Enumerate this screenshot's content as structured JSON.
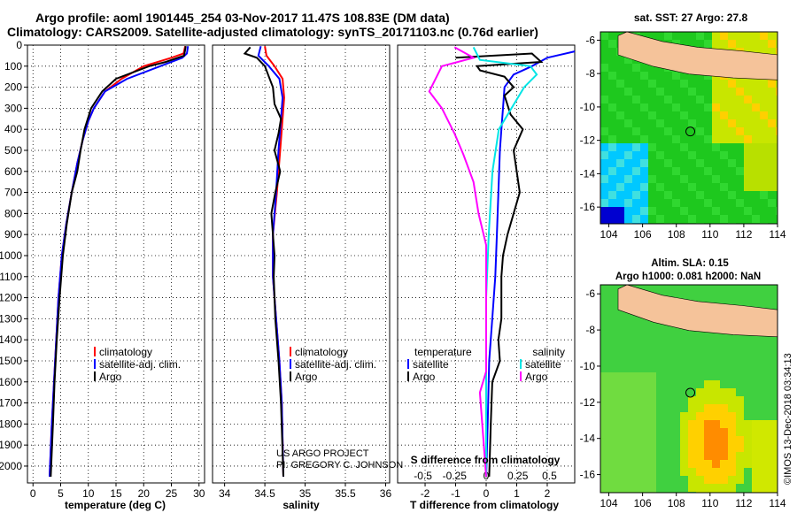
{
  "header": {
    "line1": "Argo profile: aoml 1901445_254 03-Nov-2017 11.47S 108.83E (DM data)",
    "line2": "Climatology: CARS2009. Satellite-adjusted climatology: synTS_20171103.nc (0.76d earlier)"
  },
  "colors": {
    "climatology": "#ff0000",
    "satellite": "#0000ff",
    "argo": "#000000",
    "sat_salinity": "#00e5e5",
    "argo_salinity": "#ff00ff"
  },
  "chart_data": [
    {
      "type": "line",
      "panel": "temperature",
      "xlabel": "temperature (deg C)",
      "xlim": [
        -1,
        31
      ],
      "ylim": [
        2080,
        0
      ],
      "xticks": [
        "0",
        "5",
        "10",
        "15",
        "20",
        "25",
        "30"
      ],
      "yticks": [
        "0",
        "100",
        "200",
        "300",
        "400",
        "500",
        "600",
        "700",
        "800",
        "900",
        "1000",
        "1100",
        "1200",
        "1300",
        "1400",
        "1500",
        "1600",
        "1700",
        "1800",
        "1900",
        "2000"
      ],
      "legend": [
        "climatology",
        "satellite-adj. clim.",
        "Argo"
      ],
      "series": [
        {
          "name": "climatology",
          "color": "#ff0000",
          "points": [
            [
              27.5,
              5
            ],
            [
              27.2,
              40
            ],
            [
              25,
              60
            ],
            [
              20,
              100
            ],
            [
              16,
              160
            ],
            [
              13,
              220
            ],
            [
              11,
              300
            ],
            [
              10,
              360
            ],
            [
              9,
              450
            ],
            [
              8,
              560
            ],
            [
              7,
              700
            ],
            [
              6,
              850
            ],
            [
              5.2,
              1000
            ],
            [
              4.6,
              1200
            ],
            [
              4.2,
              1400
            ],
            [
              3.8,
              1600
            ],
            [
              3.4,
              1800
            ],
            [
              3,
              2050
            ]
          ]
        },
        {
          "name": "satellite-adj. clim.",
          "color": "#0000ff",
          "points": [
            [
              28,
              5
            ],
            [
              27.8,
              40
            ],
            [
              27,
              60
            ],
            [
              23,
              100
            ],
            [
              17,
              160
            ],
            [
              13,
              220
            ],
            [
              11,
              300
            ],
            [
              10,
              360
            ],
            [
              9,
              450
            ],
            [
              8,
              560
            ],
            [
              7,
              700
            ],
            [
              6,
              850
            ],
            [
              5.2,
              1000
            ],
            [
              4.6,
              1200
            ],
            [
              4.2,
              1400
            ],
            [
              3.8,
              1600
            ],
            [
              3.4,
              1800
            ],
            [
              3,
              2050
            ]
          ]
        },
        {
          "name": "Argo",
          "color": "#000000",
          "points": [
            [
              27.6,
              5
            ],
            [
              27.3,
              50
            ],
            [
              24,
              80
            ],
            [
              21,
              100
            ],
            [
              15,
              160
            ],
            [
              12.5,
              220
            ],
            [
              10.5,
              300
            ],
            [
              9.3,
              400
            ],
            [
              8.6,
              500
            ],
            [
              8,
              600
            ],
            [
              7,
              700
            ],
            [
              6.1,
              850
            ],
            [
              5.4,
              1000
            ],
            [
              4.8,
              1200
            ],
            [
              4.3,
              1400
            ],
            [
              3.9,
              1600
            ],
            [
              3.6,
              1800
            ],
            [
              3.2,
              2050
            ]
          ]
        }
      ]
    },
    {
      "type": "line",
      "panel": "salinity",
      "xlabel": "salinity",
      "xlim": [
        33.85,
        36.05
      ],
      "ylim": [
        2080,
        0
      ],
      "xticks": [
        "34",
        "34.5",
        "35",
        "35.5",
        "36"
      ],
      "legend": [
        "climatology",
        "satellite-adj. clim.",
        "Argo"
      ],
      "annotation": [
        "US ARGO PROJECT",
        "PI: GREGORY C. JOHNSON"
      ],
      "series": [
        {
          "name": "climatology",
          "color": "#ff0000",
          "points": [
            [
              34.5,
              5
            ],
            [
              34.52,
              50
            ],
            [
              34.62,
              100
            ],
            [
              34.72,
              160
            ],
            [
              34.74,
              250
            ],
            [
              34.72,
              350
            ],
            [
              34.69,
              500
            ],
            [
              34.65,
              700
            ],
            [
              34.6,
              900
            ],
            [
              34.6,
              1100
            ],
            [
              34.64,
              1300
            ],
            [
              34.68,
              1500
            ],
            [
              34.71,
              1700
            ],
            [
              34.73,
              2050
            ]
          ]
        },
        {
          "name": "satellite-adj. clim.",
          "color": "#0000ff",
          "points": [
            [
              34.45,
              5
            ],
            [
              34.42,
              50
            ],
            [
              34.55,
              100
            ],
            [
              34.68,
              160
            ],
            [
              34.72,
              250
            ],
            [
              34.7,
              350
            ],
            [
              34.67,
              500
            ],
            [
              34.64,
              700
            ],
            [
              34.6,
              900
            ],
            [
              34.6,
              1100
            ],
            [
              34.64,
              1300
            ],
            [
              34.68,
              1500
            ],
            [
              34.71,
              1700
            ],
            [
              34.73,
              2050
            ]
          ]
        },
        {
          "name": "Argo",
          "color": "#000000",
          "points": [
            [
              34.32,
              10
            ],
            [
              34.25,
              40
            ],
            [
              34.4,
              60
            ],
            [
              34.5,
              100
            ],
            [
              34.55,
              150
            ],
            [
              34.6,
              200
            ],
            [
              34.62,
              280
            ],
            [
              34.7,
              350
            ],
            [
              34.67,
              420
            ],
            [
              34.62,
              500
            ],
            [
              34.69,
              600
            ],
            [
              34.63,
              700
            ],
            [
              34.58,
              800
            ],
            [
              34.6,
              900
            ],
            [
              34.62,
              1000
            ],
            [
              34.61,
              1100
            ],
            [
              34.63,
              1300
            ],
            [
              34.67,
              1500
            ],
            [
              34.7,
              1700
            ],
            [
              34.73,
              2050
            ]
          ]
        }
      ]
    },
    {
      "type": "line",
      "panel": "difference",
      "xlabel": "T difference from climatology",
      "xlabel_top": "S difference from climatology",
      "xlim": [
        -2.9,
        2.9
      ],
      "ylim": [
        2080,
        0
      ],
      "xticks": [
        "-2",
        "-1",
        "0",
        "1",
        "2"
      ],
      "xticks_s": [
        "-0.5",
        "-0.25",
        "0",
        "0.25",
        "0.5"
      ],
      "legend": {
        "temperature": [
          "satellite",
          "Argo"
        ],
        "salinity": [
          "satellite",
          "Argo"
        ]
      },
      "legend_titles": [
        "temperature",
        "salinity"
      ],
      "series": [
        {
          "name": "satellite",
          "quantity": "temperature",
          "color": "#0000ff",
          "points": [
            [
              2.9,
              30
            ],
            [
              2,
              60
            ],
            [
              1.5,
              100
            ],
            [
              0.9,
              140
            ],
            [
              0.6,
              200
            ],
            [
              0.55,
              300
            ],
            [
              0.5,
              400
            ],
            [
              0.45,
              500
            ],
            [
              0.4,
              700
            ],
            [
              0.35,
              900
            ],
            [
              0.3,
              1100
            ],
            [
              0.2,
              1300
            ],
            [
              0.1,
              1500
            ],
            [
              0.05,
              1800
            ],
            [
              0,
              2050
            ]
          ]
        },
        {
          "name": "Argo",
          "quantity": "temperature",
          "color": "#000000",
          "points": [
            [
              -1,
              60
            ],
            [
              1.5,
              40
            ],
            [
              1.8,
              80
            ],
            [
              -0.3,
              100
            ],
            [
              -0.2,
              120
            ],
            [
              0.6,
              150
            ],
            [
              0.9,
              200
            ],
            [
              0.6,
              240
            ],
            [
              0.8,
              330
            ],
            [
              1.2,
              400
            ],
            [
              0.9,
              500
            ],
            [
              1.0,
              600
            ],
            [
              1.1,
              700
            ],
            [
              0.9,
              800
            ],
            [
              0.7,
              900
            ],
            [
              0.55,
              1000
            ],
            [
              0.5,
              1100
            ],
            [
              0.5,
              1300
            ],
            [
              0.4,
              1400
            ],
            [
              0.45,
              1500
            ],
            [
              0.2,
              1600
            ],
            [
              0.15,
              1800
            ],
            [
              0.1,
              2050
            ]
          ]
        },
        {
          "name": "satellite",
          "quantity": "salinity",
          "color": "#00e5e5",
          "points": [
            [
              -0.1,
              10
            ],
            [
              -0.05,
              70
            ],
            [
              0.35,
              100
            ],
            [
              0.4,
              140
            ],
            [
              0.3,
              200
            ],
            [
              0.2,
              300
            ],
            [
              0.1,
              400
            ],
            [
              0.05,
              600
            ],
            [
              0.02,
              900
            ],
            [
              0,
              1200
            ],
            [
              0,
              2050
            ]
          ]
        },
        {
          "name": "Argo",
          "quantity": "salinity",
          "color": "#ff00ff",
          "points": [
            [
              -0.25,
              10
            ],
            [
              -0.1,
              60
            ],
            [
              -0.35,
              100
            ],
            [
              -0.4,
              160
            ],
            [
              -0.45,
              220
            ],
            [
              -0.35,
              300
            ],
            [
              -0.3,
              360
            ],
            [
              -0.25,
              420
            ],
            [
              -0.18,
              520
            ],
            [
              -0.1,
              650
            ],
            [
              -0.06,
              800
            ],
            [
              0,
              950
            ],
            [
              0,
              1550
            ],
            [
              -0.05,
              1650
            ],
            [
              0,
              2050
            ]
          ]
        }
      ]
    }
  ],
  "maps": {
    "sst": {
      "title": "sat. SST: 27 Argo: 27.8",
      "xticks": [
        "104",
        "106",
        "108",
        "110",
        "112",
        "114"
      ],
      "yticks": [
        "-6",
        "-8",
        "-10",
        "-12",
        "-14",
        "-16"
      ],
      "xlim": [
        103.5,
        114
      ],
      "ylim": [
        -17,
        -5.5
      ],
      "argo_position": [
        108.83,
        -11.47
      ]
    },
    "sla": {
      "title1": "Altim. SLA: 0.15",
      "title2": "Argo h1000: 0.081 h2000: NaN",
      "xticks": [
        "104",
        "106",
        "108",
        "110",
        "112",
        "114"
      ],
      "yticks": [
        "-6",
        "-8",
        "-10",
        "-12",
        "-14",
        "-16"
      ],
      "xlim": [
        103.5,
        114
      ],
      "ylim": [
        -17,
        -5.5
      ],
      "argo_position": [
        108.83,
        -11.47
      ]
    }
  },
  "credit": "©IMOS 13-Dec-2018 03:34:13"
}
